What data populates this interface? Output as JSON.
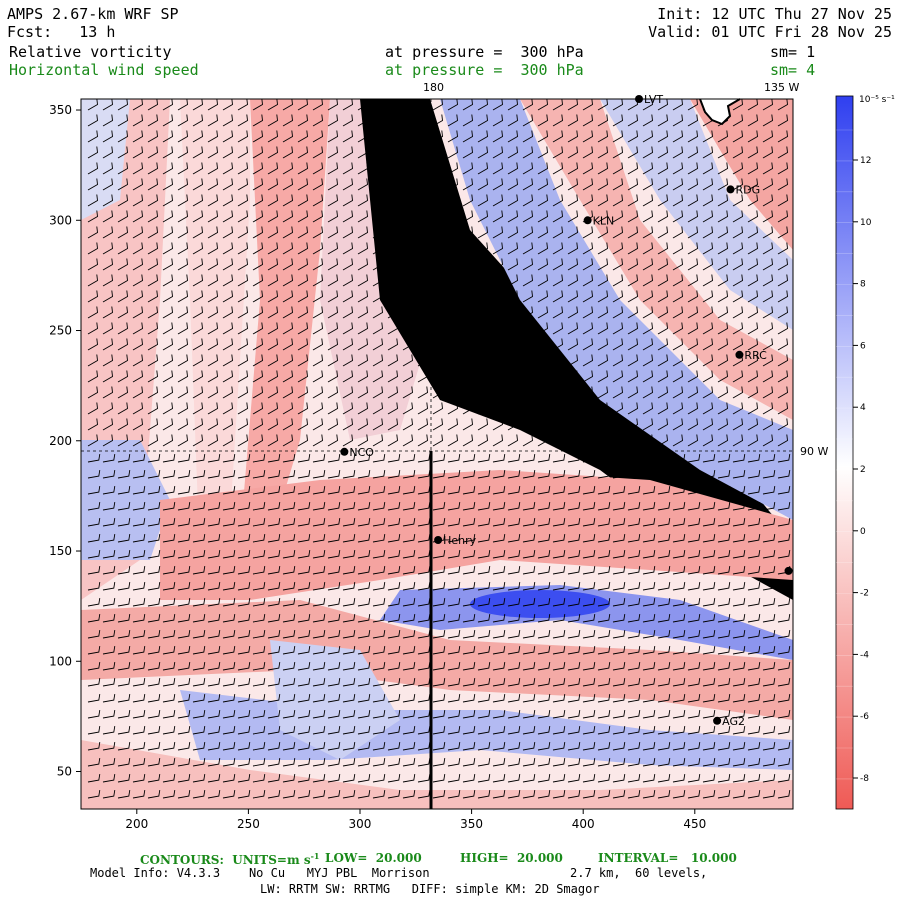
{
  "header": {
    "model_title": "AMPS 2.67-km WRF SP",
    "fcst": "Fcst:   13 h",
    "init": "Init: 12 UTC Thu 27 Nov 25",
    "valid": "Valid: 01 UTC Fri 28 Nov 25",
    "field1": "Relative vorticity",
    "field1_level": "at pressure =  300 hPa",
    "field1_sm": "sm= 1",
    "field2": "Horizontal wind speed",
    "field2_level": "at pressure =  300 hPa",
    "field2_sm": "sm= 4"
  },
  "map": {
    "x_ticks": [
      "200",
      "250",
      "300",
      "350",
      "400",
      "450"
    ],
    "y_ticks": [
      "50",
      "100",
      "150",
      "200",
      "250",
      "300",
      "350"
    ],
    "lon_labels": {
      "top_180": "180",
      "top_135w": "135 W",
      "right_90w": "90 W"
    },
    "stations": [
      {
        "name": "LVT",
        "x": 425,
        "y": 355
      },
      {
        "name": "RDG",
        "x": 466,
        "y": 314
      },
      {
        "name": "KLN",
        "x": 402,
        "y": 300
      },
      {
        "name": "RRC",
        "x": 470,
        "y": 239
      },
      {
        "name": "NCO",
        "x": 293,
        "y": 195
      },
      {
        "name": "Henry",
        "x": 335,
        "y": 155
      },
      {
        "name": "",
        "x": 492,
        "y": 141
      },
      {
        "name": "AG2",
        "x": 460,
        "y": 73
      }
    ],
    "colors": {
      "positive": "#3f4ff0",
      "negative": "#ef5550",
      "barb": "#000000"
    }
  },
  "colorbar": {
    "unit_label": "10⁻⁵ s⁻¹",
    "tick_labels": [
      "12",
      "10",
      "8",
      "6",
      "4",
      "2",
      "0",
      "-2",
      "-4",
      "-6",
      "-8"
    ]
  },
  "footer": {
    "contours_label": "CONTOURS:  UNITS=m s",
    "contours_sup": "-1",
    "low": "LOW=  20.000",
    "high": "HIGH=  20.000",
    "interval": "INTERVAL=   10.000",
    "model_info": "Model Info: V4.3.3    No Cu   MYJ PBL  Morrison",
    "grid_info": "2.7 km,  60 levels,",
    "physics_info": "LW: RRTM SW: RRTMG   DIFF: simple KM: 2D Smagor"
  }
}
